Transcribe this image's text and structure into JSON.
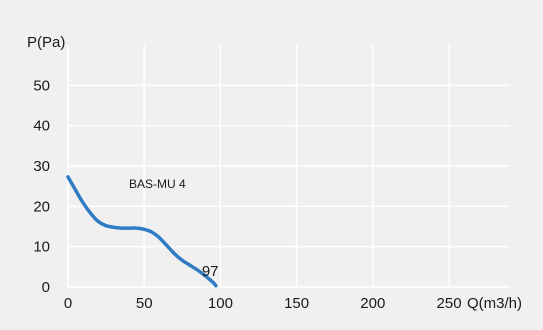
{
  "chart_data": {
    "type": "line",
    "title": "",
    "xlabel": "Q(m3/h)",
    "ylabel": "P(Pa)",
    "xlim": [
      0,
      290
    ],
    "ylim": [
      0,
      60
    ],
    "x_ticks": [
      0,
      50,
      100,
      150,
      200,
      250
    ],
    "y_ticks": [
      0,
      10,
      20,
      30,
      40,
      50
    ],
    "grid": true,
    "colors": {
      "series": "#2f7bc4",
      "grid": "#ffffff",
      "background": "#f0f0f1"
    },
    "series": [
      {
        "name": "BAS-MU 4",
        "x": [
          0,
          5,
          10,
          15,
          20,
          25,
          30,
          35,
          40,
          45,
          50,
          55,
          60,
          65,
          70,
          75,
          80,
          85,
          90,
          95,
          97
        ],
        "y": [
          27.3,
          24.0,
          20.8,
          18.2,
          16.2,
          15.2,
          14.8,
          14.6,
          14.6,
          14.6,
          14.3,
          13.6,
          12.2,
          10.2,
          8.2,
          6.6,
          5.4,
          4.2,
          2.8,
          1.2,
          0.3
        ]
      }
    ],
    "annotations": [
      {
        "text": "97",
        "x": 97,
        "y": 3.2
      }
    ]
  }
}
